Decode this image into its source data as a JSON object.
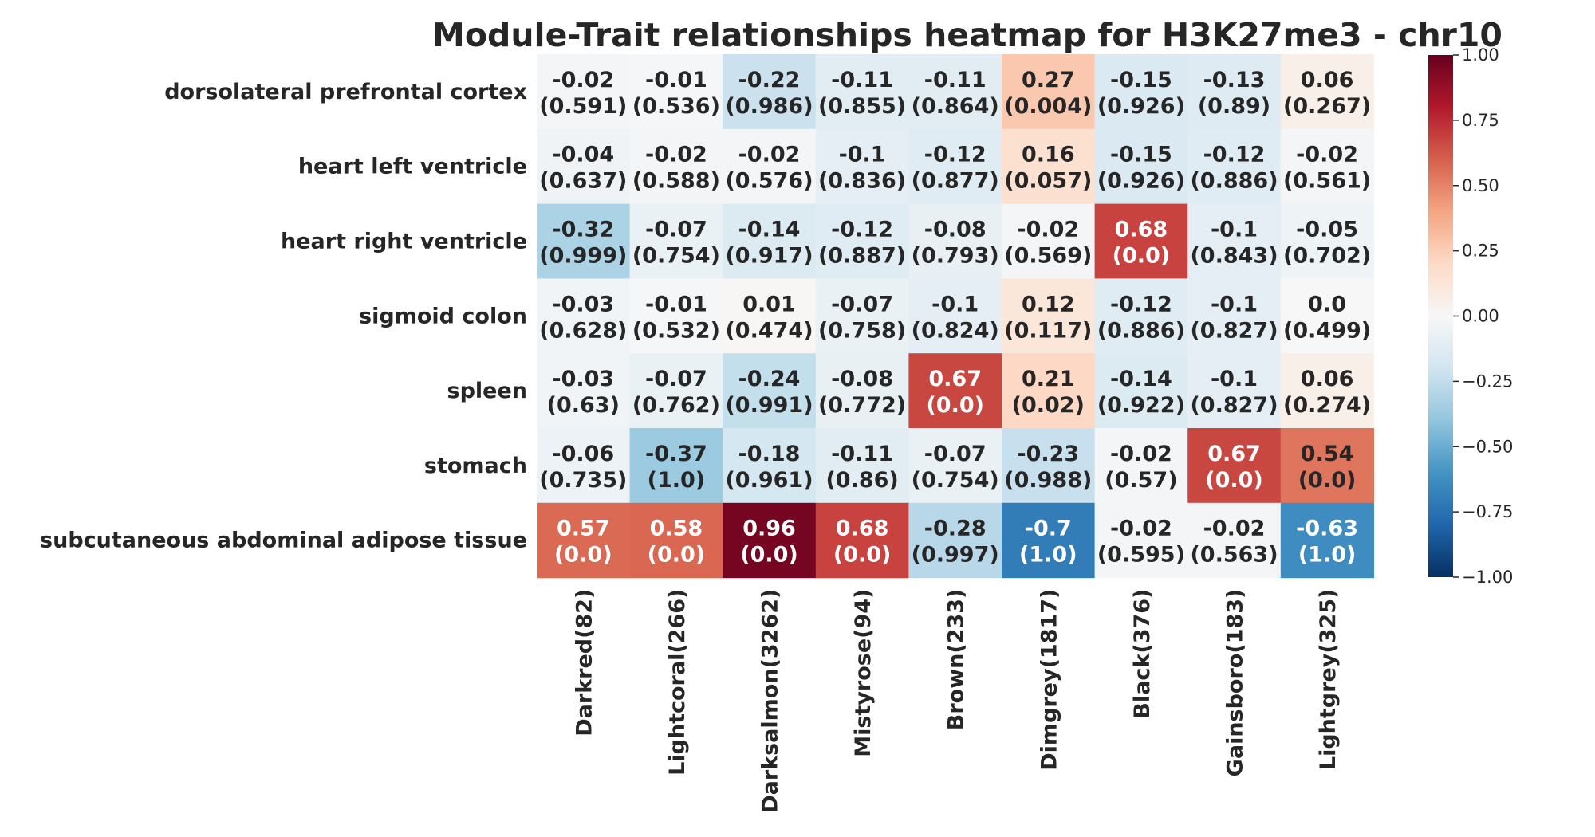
{
  "chart_data": {
    "type": "heatmap",
    "title": "Module-Trait relationships heatmap for H3K27me3 - chr10",
    "rows": [
      "dorsolateral prefrontal cortex",
      "heart left ventricle",
      "heart right ventricle",
      "sigmoid colon",
      "spleen",
      "stomach",
      "subcutaneous abdominal adipose tissue"
    ],
    "columns": [
      "Darkred(82)",
      "Lightcoral(266)",
      "Darksalmon(3262)",
      "Mistyrose(94)",
      "Brown(233)",
      "Dimgrey(1817)",
      "Black(376)",
      "Gainsboro(183)",
      "Lightgrey(325)"
    ],
    "values": [
      [
        -0.02,
        -0.01,
        -0.22,
        -0.11,
        -0.11,
        0.27,
        -0.15,
        -0.13,
        0.06
      ],
      [
        -0.04,
        -0.02,
        -0.02,
        -0.1,
        -0.12,
        0.16,
        -0.15,
        -0.12,
        -0.02
      ],
      [
        -0.32,
        -0.07,
        -0.14,
        -0.12,
        -0.08,
        -0.02,
        0.68,
        -0.1,
        -0.05
      ],
      [
        -0.03,
        -0.01,
        0.01,
        -0.07,
        -0.1,
        0.12,
        -0.12,
        -0.1,
        0.0
      ],
      [
        -0.03,
        -0.07,
        -0.24,
        -0.08,
        0.67,
        0.21,
        -0.14,
        -0.1,
        0.06
      ],
      [
        -0.06,
        -0.37,
        -0.18,
        -0.11,
        -0.07,
        -0.23,
        -0.02,
        0.67,
        0.54
      ],
      [
        0.57,
        0.58,
        0.96,
        0.68,
        -0.28,
        -0.7,
        -0.02,
        -0.02,
        -0.63
      ]
    ],
    "value_labels": [
      [
        "-0.02",
        "-0.01",
        "-0.22",
        "-0.11",
        "-0.11",
        "0.27",
        "-0.15",
        "-0.13",
        "0.06"
      ],
      [
        "-0.04",
        "-0.02",
        "-0.02",
        "-0.1",
        "-0.12",
        "0.16",
        "-0.15",
        "-0.12",
        "-0.02"
      ],
      [
        "-0.32",
        "-0.07",
        "-0.14",
        "-0.12",
        "-0.08",
        "-0.02",
        "0.68",
        "-0.1",
        "-0.05"
      ],
      [
        "-0.03",
        "-0.01",
        "0.01",
        "-0.07",
        "-0.1",
        "0.12",
        "-0.12",
        "-0.1",
        "0.0"
      ],
      [
        "-0.03",
        "-0.07",
        "-0.24",
        "-0.08",
        "0.67",
        "0.21",
        "-0.14",
        "-0.1",
        "0.06"
      ],
      [
        "-0.06",
        "-0.37",
        "-0.18",
        "-0.11",
        "-0.07",
        "-0.23",
        "-0.02",
        "0.67",
        "0.54"
      ],
      [
        "0.57",
        "0.58",
        "0.96",
        "0.68",
        "-0.28",
        "-0.7",
        "-0.02",
        "-0.02",
        "-0.63"
      ]
    ],
    "pvalue_labels": [
      [
        "(0.591)",
        "(0.536)",
        "(0.986)",
        "(0.855)",
        "(0.864)",
        "(0.004)",
        "(0.926)",
        "(0.89)",
        "(0.267)"
      ],
      [
        "(0.637)",
        "(0.588)",
        "(0.576)",
        "(0.836)",
        "(0.877)",
        "(0.057)",
        "(0.926)",
        "(0.886)",
        "(0.561)"
      ],
      [
        "(0.999)",
        "(0.754)",
        "(0.917)",
        "(0.887)",
        "(0.793)",
        "(0.569)",
        "(0.0)",
        "(0.843)",
        "(0.702)"
      ],
      [
        "(0.628)",
        "(0.532)",
        "(0.474)",
        "(0.758)",
        "(0.824)",
        "(0.117)",
        "(0.886)",
        "(0.827)",
        "(0.499)"
      ],
      [
        "(0.63)",
        "(0.762)",
        "(0.991)",
        "(0.772)",
        "(0.0)",
        "(0.02)",
        "(0.922)",
        "(0.827)",
        "(0.274)"
      ],
      [
        "(0.735)",
        "(1.0)",
        "(0.961)",
        "(0.86)",
        "(0.754)",
        "(0.988)",
        "(0.57)",
        "(0.0)",
        "(0.0)"
      ],
      [
        "(0.0)",
        "(0.0)",
        "(0.0)",
        "(0.0)",
        "(0.997)",
        "(1.0)",
        "(0.595)",
        "(0.563)",
        "(1.0)"
      ]
    ],
    "colormap": "RdBu_r",
    "colorbar": {
      "vmin": -1.0,
      "vmax": 1.0,
      "ticks": [
        1.0,
        0.75,
        0.5,
        0.25,
        0.0,
        -0.25,
        -0.5,
        -0.75,
        -1.0
      ],
      "tick_labels": [
        "1.00",
        "0.75",
        "0.50",
        "0.25",
        "0.00",
        "−0.25",
        "−0.50",
        "−0.75",
        "−1.00"
      ]
    },
    "colormap_stops": [
      [
        -1.0,
        "#053061"
      ],
      [
        -0.8,
        "#2166ac"
      ],
      [
        -0.6,
        "#4393c3"
      ],
      [
        -0.4,
        "#92c5de"
      ],
      [
        -0.2,
        "#d1e5f0"
      ],
      [
        0.0,
        "#f7f7f7"
      ],
      [
        0.2,
        "#fddbc7"
      ],
      [
        0.4,
        "#f4a582"
      ],
      [
        0.6,
        "#d6604d"
      ],
      [
        0.8,
        "#b2182b"
      ],
      [
        1.0,
        "#67001f"
      ]
    ]
  }
}
